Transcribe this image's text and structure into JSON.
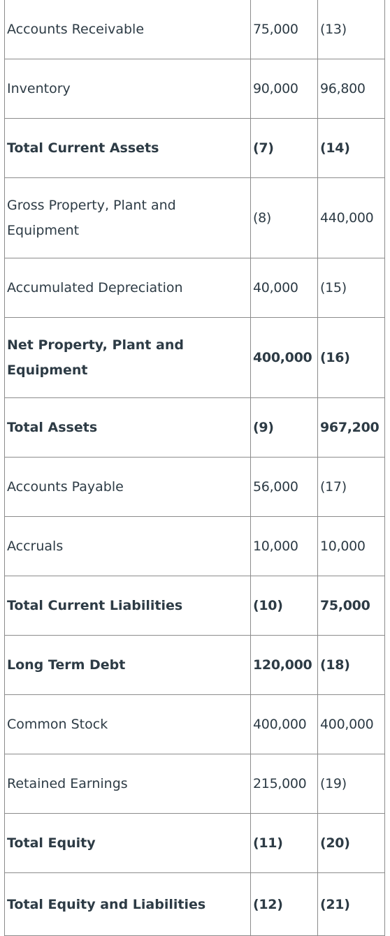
{
  "rows": [
    {
      "label": "Accounts Receivable",
      "y1": "75,000",
      "y2": "(13)",
      "bold": false
    },
    {
      "label": "Inventory",
      "y1": "90,000",
      "y2": "96,800",
      "bold": false
    },
    {
      "label": "Total Current Assets",
      "y1": "(7)",
      "y2": "(14)",
      "bold": true
    },
    {
      "label": "Gross Property, Plant and Equipment",
      "y1": "(8)",
      "y2": "440,000",
      "bold": false
    },
    {
      "label": "Accumulated Depreciation",
      "y1": "40,000",
      "y2": "(15)",
      "bold": false
    },
    {
      "label": "Net Property, Plant and Equipment",
      "y1": "400,000",
      "y2": "(16)",
      "bold": true
    },
    {
      "label": "Total Assets",
      "y1": "(9)",
      "y2": "967,200",
      "bold": true
    },
    {
      "label": "Accounts Payable",
      "y1": "56,000",
      "y2": "(17)",
      "bold": false
    },
    {
      "label": "Accruals",
      "y1": "10,000",
      "y2": "10,000",
      "bold": false
    },
    {
      "label": "Total Current Liabilities",
      "y1": "(10)",
      "y2": "75,000",
      "bold": true
    },
    {
      "label": "Long Term Debt",
      "y1": "120,000",
      "y2": "(18)",
      "bold": true
    },
    {
      "label": "Common Stock",
      "y1": "400,000",
      "y2": "400,000",
      "bold": false
    },
    {
      "label": "Retained Earnings",
      "y1": "215,000",
      "y2": "(19)",
      "bold": false
    },
    {
      "label": "Total Equity",
      "y1": "(11)",
      "y2": "(20)",
      "bold": true
    },
    {
      "label": "Total Equity and Liabilities",
      "y1": "(12)",
      "y2": "(21)",
      "bold": true
    }
  ]
}
